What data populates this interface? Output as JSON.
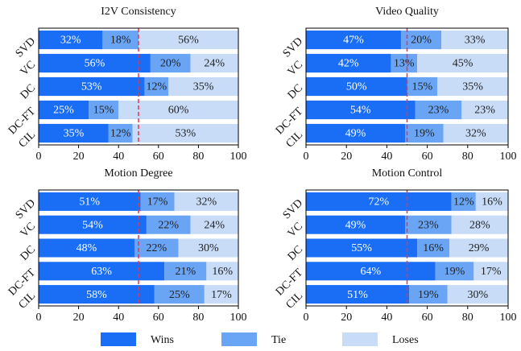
{
  "chart_data": [
    {
      "type": "stacked-barh",
      "title": "I2V Consistency",
      "categories": [
        "SVD",
        "VC",
        "DC",
        "DC-FT",
        "CIL"
      ],
      "series": [
        {
          "name": "Wins",
          "color": "#1a6ef5",
          "values": [
            32,
            56,
            53,
            25,
            35
          ],
          "value_labels": [
            "32%",
            "56%",
            "53%",
            "25%",
            "35%"
          ]
        },
        {
          "name": "Tie",
          "color": "#6aa5f5",
          "values": [
            18,
            20,
            12,
            15,
            12
          ],
          "value_labels": [
            "18%",
            "20%",
            "12%",
            "15%",
            "12%"
          ]
        },
        {
          "name": "Loses",
          "color": "#c8dcf8",
          "values": [
            56,
            24,
            35,
            60,
            53
          ],
          "value_labels": [
            "56%",
            "24%",
            "35%",
            "60%",
            "53%"
          ]
        }
      ],
      "xlim": [
        0,
        100
      ],
      "xticks": [
        0,
        20,
        40,
        60,
        80,
        100
      ],
      "refline": 50
    },
    {
      "type": "stacked-barh",
      "title": "Video Quality",
      "categories": [
        "SVD",
        "VC",
        "DC",
        "DC-FT",
        "CIL"
      ],
      "series": [
        {
          "name": "Wins",
          "color": "#1a6ef5",
          "values": [
            47,
            42,
            50,
            54,
            49
          ],
          "value_labels": [
            "47%",
            "42%",
            "50%",
            "54%",
            "49%"
          ]
        },
        {
          "name": "Tie",
          "color": "#6aa5f5",
          "values": [
            20,
            13,
            15,
            23,
            19
          ],
          "value_labels": [
            "20%",
            "13%",
            "15%",
            "23%",
            "19%"
          ]
        },
        {
          "name": "Loses",
          "color": "#c8dcf8",
          "values": [
            33,
            45,
            35,
            23,
            32
          ],
          "value_labels": [
            "33%",
            "45%",
            "35%",
            "23%",
            "32%"
          ]
        }
      ],
      "xlim": [
        0,
        100
      ],
      "xticks": [
        0,
        20,
        40,
        60,
        80,
        100
      ],
      "refline": 50
    },
    {
      "type": "stacked-barh",
      "title": "Motion Degree",
      "categories": [
        "SVD",
        "VC",
        "DC",
        "DC-FT",
        "CIL"
      ],
      "series": [
        {
          "name": "Wins",
          "color": "#1a6ef5",
          "values": [
            51,
            54,
            48,
            63,
            58
          ],
          "value_labels": [
            "51%",
            "54%",
            "48%",
            "63%",
            "58%"
          ]
        },
        {
          "name": "Tie",
          "color": "#6aa5f5",
          "values": [
            17,
            22,
            22,
            21,
            25
          ],
          "value_labels": [
            "17%",
            "22%",
            "22%",
            "21%",
            "25%"
          ]
        },
        {
          "name": "Loses",
          "color": "#c8dcf8",
          "values": [
            32,
            24,
            30,
            16,
            17
          ],
          "value_labels": [
            "32%",
            "24%",
            "30%",
            "16%",
            "17%"
          ]
        }
      ],
      "xlim": [
        0,
        100
      ],
      "xticks": [
        0,
        20,
        40,
        60,
        80,
        100
      ],
      "refline": 50
    },
    {
      "type": "stacked-barh",
      "title": "Motion Control",
      "categories": [
        "SVD",
        "VC",
        "DC",
        "DC-FT",
        "CIL"
      ],
      "series": [
        {
          "name": "Wins",
          "color": "#1a6ef5",
          "values": [
            72,
            49,
            55,
            64,
            51
          ],
          "value_labels": [
            "72%",
            "49%",
            "55%",
            "64%",
            "51%"
          ]
        },
        {
          "name": "Tie",
          "color": "#6aa5f5",
          "values": [
            12,
            23,
            16,
            19,
            19
          ],
          "value_labels": [
            "12%",
            "23%",
            "16%",
            "19%",
            "19%"
          ]
        },
        {
          "name": "Loses",
          "color": "#c8dcf8",
          "values": [
            16,
            28,
            29,
            17,
            30
          ],
          "value_labels": [
            "16%",
            "28%",
            "29%",
            "17%",
            "30%"
          ]
        }
      ],
      "xlim": [
        0,
        100
      ],
      "xticks": [
        0,
        20,
        40,
        60,
        80,
        100
      ],
      "refline": 50
    }
  ]
}
